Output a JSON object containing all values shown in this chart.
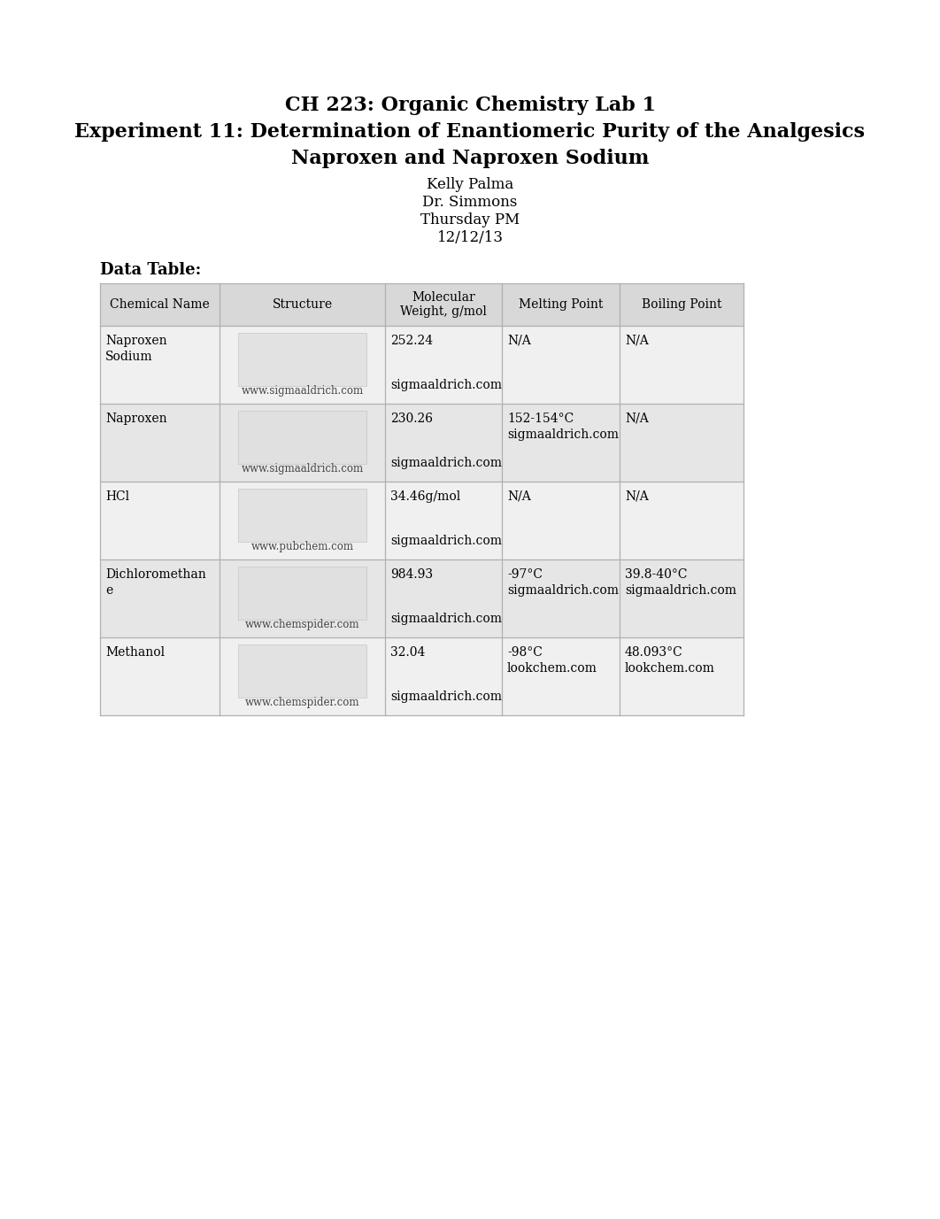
{
  "title_line1": "CH 223: Organic Chemistry Lab 1",
  "title_line2": "Experiment 11: Determination of Enantiomeric Purity of the Analgesics",
  "title_line3": "Naproxen and Naproxen Sodium",
  "author": "Kelly Palma",
  "instructor": "Dr. Simmons",
  "section": "Thursday PM",
  "date": "12/12/13",
  "section_label": "Data Table:",
  "col_headers": [
    "Chemical Name",
    "Structure",
    "Molecular\nWeight, g/mol",
    "Melting Point",
    "Boiling Point"
  ],
  "rows": [
    {
      "name": "Naproxen\nSodium",
      "structure_label": "www.sigmaaldrich.com",
      "mol_weight_line1": "252.24",
      "mol_weight_line2": "sigmaaldrich.com",
      "melting_line1": "N/A",
      "melting_line2": "",
      "boiling_line1": "N/A",
      "boiling_line2": ""
    },
    {
      "name": "Naproxen",
      "structure_label": "www.sigmaaldrich.com",
      "mol_weight_line1": "230.26",
      "mol_weight_line2": "sigmaaldrich.com",
      "melting_line1": "152-154°C",
      "melting_line2": "sigmaaldrich.com",
      "boiling_line1": "N/A",
      "boiling_line2": ""
    },
    {
      "name": "HCl",
      "structure_label": "www.pubchem.com",
      "mol_weight_line1": "34.46g/mol",
      "mol_weight_line2": "sigmaaldrich.com",
      "melting_line1": "N/A",
      "melting_line2": "",
      "boiling_line1": "N/A",
      "boiling_line2": ""
    },
    {
      "name": "Dichloromethan\ne",
      "structure_label": "www.chemspider.com",
      "mol_weight_line1": "984.93",
      "mol_weight_line2": "sigmaaldrich.com",
      "melting_line1": "-97°C",
      "melting_line2": "sigmaaldrich.com",
      "boiling_line1": "39.8-40°C",
      "boiling_line2": "sigmaaldrich.com"
    },
    {
      "name": "Methanol",
      "structure_label": "www.chemspider.com",
      "mol_weight_line1": "32.04",
      "mol_weight_line2": "sigmaaldrich.com",
      "melting_line1": "-98°C",
      "melting_line2": "lookchem.com",
      "boiling_line1": "48.093°C",
      "boiling_line2": "lookchem.com"
    }
  ],
  "border_color": "#b0b0b0",
  "text_color": "#000000",
  "background_color": "#ffffff",
  "header_bg": "#d8d8d8",
  "row_bg_even": "#f0f0f0",
  "row_bg_odd": "#e6e6e6",
  "struct_bg": "#e0e0e0"
}
